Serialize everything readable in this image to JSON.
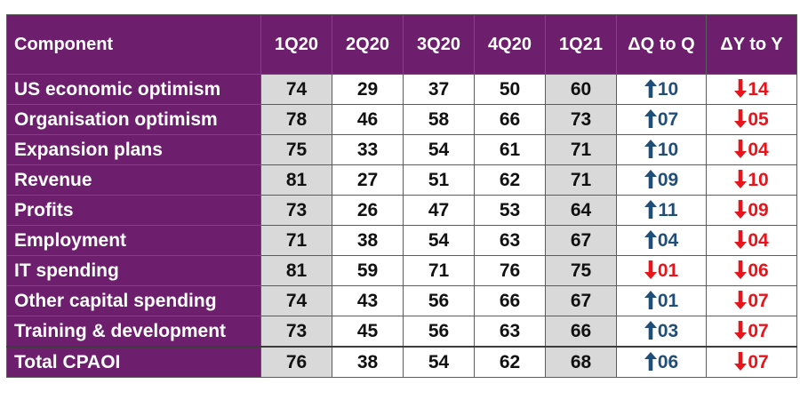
{
  "chart_data": {
    "type": "table",
    "columns": [
      "Component",
      "1Q20",
      "2Q20",
      "3Q20",
      "4Q20",
      "1Q21",
      "ΔQ to Q",
      "ΔY to Y"
    ],
    "rows": [
      {
        "label": "US economic optimism",
        "values": [
          "74",
          "29",
          "37",
          "50",
          "60"
        ],
        "dq": {
          "dir": "up",
          "value": "10"
        },
        "dy": {
          "dir": "down",
          "value": "14"
        }
      },
      {
        "label": "Organisation optimism",
        "values": [
          "78",
          "46",
          "58",
          "66",
          "73"
        ],
        "dq": {
          "dir": "up",
          "value": "07"
        },
        "dy": {
          "dir": "down",
          "value": "05"
        }
      },
      {
        "label": "Expansion plans",
        "values": [
          "75",
          "33",
          "54",
          "61",
          "71"
        ],
        "dq": {
          "dir": "up",
          "value": "10"
        },
        "dy": {
          "dir": "down",
          "value": "04"
        }
      },
      {
        "label": "Revenue",
        "values": [
          "81",
          "27",
          "51",
          "62",
          "71"
        ],
        "dq": {
          "dir": "up",
          "value": "09"
        },
        "dy": {
          "dir": "down",
          "value": "10"
        }
      },
      {
        "label": "Profits",
        "values": [
          "73",
          "26",
          "47",
          "53",
          "64"
        ],
        "dq": {
          "dir": "up",
          "value": "11"
        },
        "dy": {
          "dir": "down",
          "value": "09"
        }
      },
      {
        "label": "Employment",
        "values": [
          "71",
          "38",
          "54",
          "63",
          "67"
        ],
        "dq": {
          "dir": "up",
          "value": "04"
        },
        "dy": {
          "dir": "down",
          "value": "04"
        }
      },
      {
        "label": "IT spending",
        "values": [
          "81",
          "59",
          "71",
          "76",
          "75"
        ],
        "dq": {
          "dir": "down",
          "value": "01"
        },
        "dy": {
          "dir": "down",
          "value": "06"
        }
      },
      {
        "label": "Other capital spending",
        "values": [
          "74",
          "43",
          "56",
          "66",
          "67"
        ],
        "dq": {
          "dir": "up",
          "value": "01"
        },
        "dy": {
          "dir": "down",
          "value": "07"
        }
      },
      {
        "label": "Training & development",
        "values": [
          "73",
          "45",
          "56",
          "63",
          "66"
        ],
        "dq": {
          "dir": "up",
          "value": "03"
        },
        "dy": {
          "dir": "down",
          "value": "07"
        }
      },
      {
        "label": "Total CPAOI",
        "values": [
          "76",
          "38",
          "54",
          "62",
          "68"
        ],
        "dq": {
          "dir": "up",
          "value": "06"
        },
        "dy": {
          "dir": "down",
          "value": "07"
        }
      }
    ]
  },
  "colors": {
    "header_bg": "#6d1f6e",
    "header_text": "#ffffff",
    "shaded_cell": "#d9d9d9",
    "up_arrow": "#1f4e79",
    "down_arrow": "#e8141b"
  }
}
